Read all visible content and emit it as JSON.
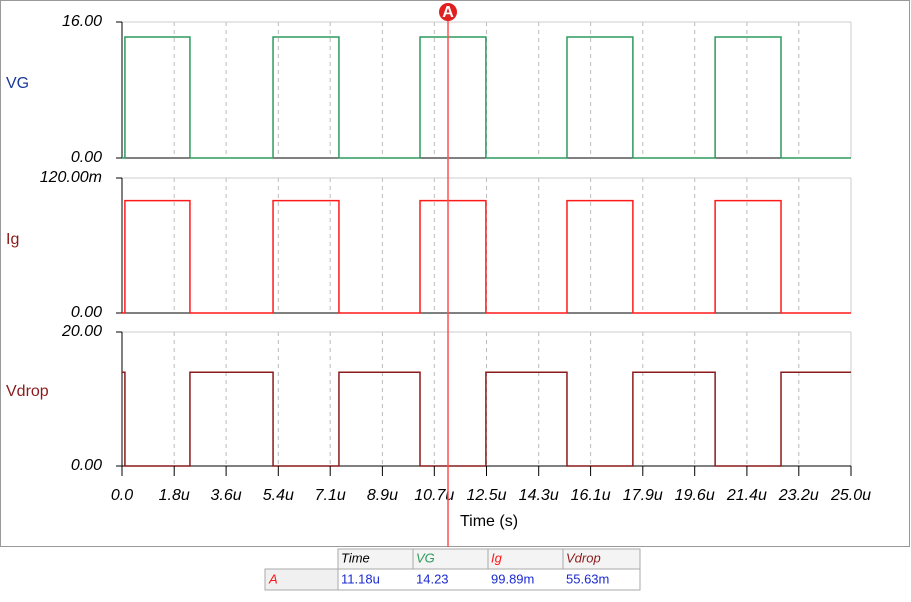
{
  "chart_data": [
    {
      "type": "line",
      "x": [
        0,
        0.1,
        0.1,
        2.33,
        2.33,
        5.18,
        5.18,
        7.44,
        7.44,
        10.22,
        10.22,
        12.48,
        12.48,
        15.26,
        15.26,
        17.52,
        17.52,
        20.34,
        20.34,
        22.6,
        22.6,
        25
      ],
      "series": [
        {
          "name": "VG",
          "color": "#2e9a5e",
          "values": [
            0,
            0,
            14.23,
            14.23,
            0,
            0,
            14.23,
            14.23,
            0,
            0,
            14.23,
            14.23,
            0,
            0,
            14.23,
            14.23,
            0,
            0,
            14.23,
            14.23,
            0,
            0
          ]
        }
      ],
      "xlim": [
        0,
        25
      ],
      "ylim": [
        0,
        16
      ],
      "yticks": [
        {
          "value": 0,
          "label": "0.00"
        },
        {
          "value": 16,
          "label": "16.00"
        }
      ]
    },
    {
      "type": "line",
      "x": [
        0,
        0.1,
        0.1,
        2.33,
        2.33,
        5.18,
        5.18,
        7.44,
        7.44,
        10.22,
        10.22,
        12.48,
        12.48,
        15.26,
        15.26,
        17.52,
        17.52,
        20.34,
        20.34,
        22.6,
        22.6,
        25
      ],
      "series": [
        {
          "name": "Ig",
          "color": "#ff1a1a",
          "values": [
            0,
            0,
            0.09989,
            0.09989,
            0,
            0,
            0.09989,
            0.09989,
            0,
            0,
            0.09989,
            0.09989,
            0,
            0,
            0.09989,
            0.09989,
            0,
            0,
            0.09989,
            0.09989,
            0,
            0
          ]
        }
      ],
      "xlim": [
        0,
        25
      ],
      "ylim": [
        0,
        0.12
      ],
      "yticks": [
        {
          "value": 0,
          "label": "0.00"
        },
        {
          "value": 0.12,
          "label": "120.00m"
        }
      ]
    },
    {
      "type": "line",
      "x": [
        0,
        0.1,
        0.1,
        2.33,
        2.33,
        5.18,
        5.18,
        7.44,
        7.44,
        10.22,
        10.22,
        12.48,
        12.48,
        15.26,
        15.26,
        17.52,
        17.52,
        20.34,
        20.34,
        22.6,
        22.6,
        25
      ],
      "series": [
        {
          "name": "Vdrop",
          "color": "#8b1a1a",
          "values": [
            14.0,
            14.0,
            0,
            0,
            14.0,
            14.0,
            0,
            0,
            14.0,
            14.0,
            0,
            0,
            14.0,
            14.0,
            0,
            0,
            14.0,
            14.0,
            0,
            0,
            14.0,
            14.0
          ]
        }
      ],
      "xlim": [
        0,
        25
      ],
      "ylim": [
        0,
        20
      ],
      "yticks": [
        {
          "value": 0,
          "label": "0.00"
        },
        {
          "value": 20,
          "label": "20.00"
        }
      ],
      "xlabel": "Time (s)",
      "xticks": [
        {
          "value": 0,
          "label": "0.0"
        },
        {
          "value": 1.79,
          "label": "1.8u"
        },
        {
          "value": 3.57,
          "label": "3.6u"
        },
        {
          "value": 5.36,
          "label": "5.4u"
        },
        {
          "value": 7.14,
          "label": "7.1u"
        },
        {
          "value": 8.93,
          "label": "8.9u"
        },
        {
          "value": 10.71,
          "label": "10.7u"
        },
        {
          "value": 12.5,
          "label": "12.5u"
        },
        {
          "value": 14.29,
          "label": "14.3u"
        },
        {
          "value": 16.07,
          "label": "16.1u"
        },
        {
          "value": 17.86,
          "label": "17.9u"
        },
        {
          "value": 19.64,
          "label": "19.6u"
        },
        {
          "value": 21.43,
          "label": "21.4u"
        },
        {
          "value": 23.21,
          "label": "23.2u"
        },
        {
          "value": 25,
          "label": "25.0u"
        }
      ]
    }
  ],
  "cursor": {
    "name": "A",
    "x": 11.18
  },
  "cursor_table": {
    "headers": [
      "Time",
      "VG",
      "Ig",
      "Vdrop"
    ],
    "rows": [
      [
        "A",
        "11.18u",
        "14.23",
        "99.89m",
        "55.63m"
      ]
    ]
  }
}
